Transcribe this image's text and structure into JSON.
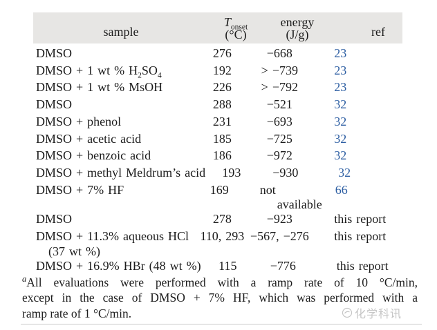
{
  "colors": {
    "header_bg": "#e7e6e4",
    "text": "#1c1c1c",
    "ref_link": "#2e5fa3",
    "rule": "#c8c8c8",
    "watermark": "#c6c6c6"
  },
  "table": {
    "header": {
      "sample": "sample",
      "t_symbol": "T",
      "t_sub": "onset",
      "t_unit": "(°C)",
      "energy": "energy",
      "energy_unit": "(J/g)",
      "ref": "ref"
    },
    "rows": [
      {
        "sample": [
          "DMSO"
        ],
        "t_onset": "276",
        "energy": "−668",
        "ref": "23",
        "ref_is_link": true
      },
      {
        "sample": [
          "DMSO + 1 wt % H",
          {
            "sub": "2"
          },
          "SO",
          {
            "sub": "4"
          }
        ],
        "t_onset": "192",
        "energy": "> −739",
        "ref": "23",
        "ref_is_link": true
      },
      {
        "sample": [
          "DMSO + 1 wt % MsOH"
        ],
        "t_onset": "226",
        "energy": "> −792",
        "ref": "23",
        "ref_is_link": true
      },
      {
        "sample": [
          "DMSO"
        ],
        "t_onset": "288",
        "energy": "−521",
        "ref": "32",
        "ref_is_link": true
      },
      {
        "sample": [
          "DMSO + phenol"
        ],
        "t_onset": "231",
        "energy": "−693",
        "ref": "32",
        "ref_is_link": true
      },
      {
        "sample": [
          "DMSO + acetic acid"
        ],
        "t_onset": "185",
        "energy": "−725",
        "ref": "32",
        "ref_is_link": true
      },
      {
        "sample": [
          "DMSO + benzoic acid"
        ],
        "t_onset": "186",
        "energy": "−972",
        "ref": "32",
        "ref_is_link": true
      },
      {
        "sample": [
          "DMSO + methyl Meldrum’s acid"
        ],
        "t_onset": "193",
        "energy": "−930",
        "ref": "32",
        "ref_is_link": true
      },
      {
        "sample": [
          "DMSO + 7% HF"
        ],
        "t_onset": "169",
        "energy": "not",
        "energy_line2": "available",
        "ref": "66",
        "ref_is_link": true
      },
      {
        "sample": [
          "DMSO"
        ],
        "t_onset": "278",
        "energy": "−923",
        "ref": "this report",
        "ref_is_link": false
      },
      {
        "sample": [
          "DMSO + 11.3% aqueous HCl"
        ],
        "sample_line2": "(37 wt %)",
        "t_onset": "110, 293",
        "energy": "−567, −276",
        "ref": "this report",
        "ref_is_link": false
      },
      {
        "sample": [
          "DMSO + 16.9% HBr (48 wt %)"
        ],
        "t_onset": "115",
        "energy": "−776",
        "ref": "this report",
        "ref_is_link": false
      }
    ]
  },
  "footnote": {
    "marker": "a",
    "lines": [
      "All evaluations were performed with a ramp rate of 10 °C/min,",
      "except in the case of DMSO + 7% HF, which was performed with a",
      "ramp rate of 1 °C/min."
    ]
  },
  "watermark": {
    "text": "化学科讯"
  }
}
